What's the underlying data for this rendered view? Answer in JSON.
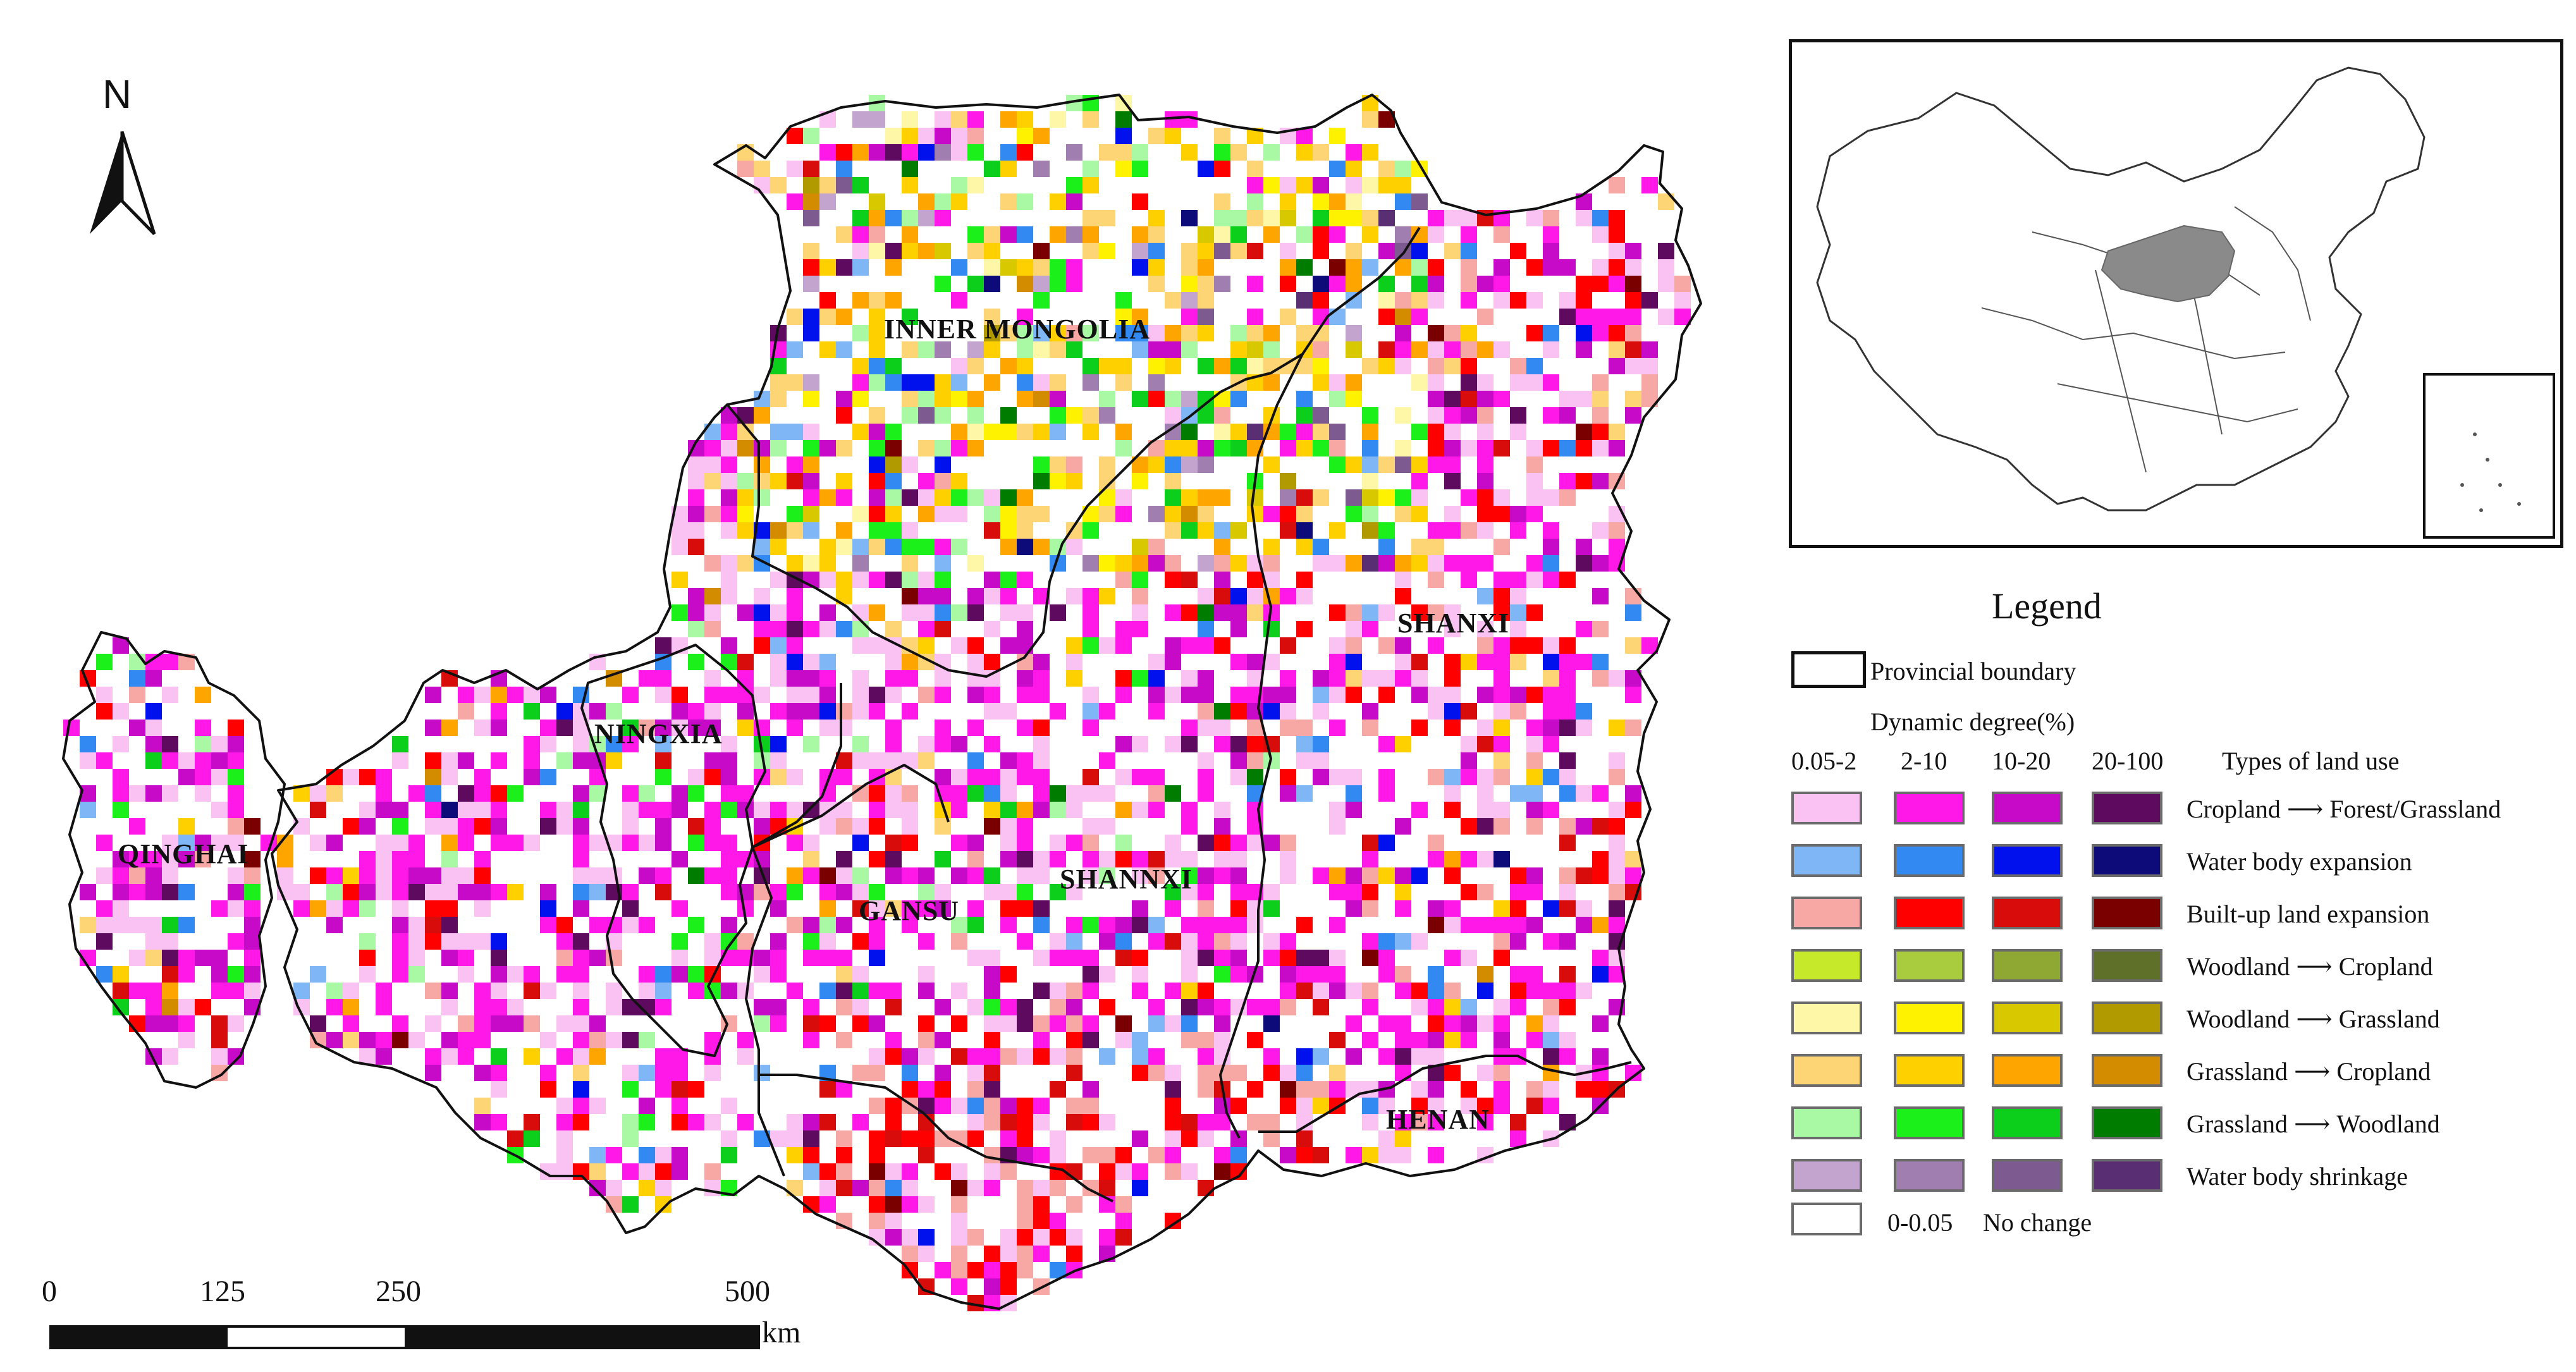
{
  "north": {
    "label": "N"
  },
  "provinces": [
    {
      "id": "inner-mongolia",
      "name": "INNER MONGOLIA"
    },
    {
      "id": "ningxia",
      "name": "NINGXIA"
    },
    {
      "id": "qinghai",
      "name": "QINGHAI"
    },
    {
      "id": "gansu",
      "name": "GANSU"
    },
    {
      "id": "shannxi",
      "name": "SHANNXI"
    },
    {
      "id": "shanxi",
      "name": "SHANXI"
    },
    {
      "id": "henan",
      "name": "HENAN"
    }
  ],
  "scale_bar": {
    "ticks": [
      "0",
      "125",
      "250",
      "500"
    ],
    "unit": "km"
  },
  "legend": {
    "title": "Legend",
    "boundary_label": "Provincial boundary",
    "dynamic_degree_label": "Dynamic degree(%)",
    "degree_classes": [
      "0.05-2",
      "2-10",
      "10-20",
      "20-100"
    ],
    "types_label": "Types of land use",
    "rows": [
      {
        "name": "cropland-to-forest",
        "from": "Cropland",
        "to": "Forest/Grassland",
        "colors": [
          "#f9c2f3",
          "#ff18e8",
          "#c70ac8",
          "#5e0a5e"
        ]
      },
      {
        "name": "water-expansion",
        "label": "Water body expansion",
        "colors": [
          "#7fb6f6",
          "#3389f2",
          "#0011ee",
          "#0d0a7a"
        ]
      },
      {
        "name": "builtup-expansion",
        "label": "Built-up land expansion",
        "colors": [
          "#f8a8a4",
          "#ff0000",
          "#d90c0c",
          "#7a0000"
        ]
      },
      {
        "name": "woodland-to-cropland",
        "from": "Woodland",
        "to": "Cropland",
        "colors": [
          "#c6ea2a",
          "#a9cc3e",
          "#8fa834",
          "#5f7028"
        ]
      },
      {
        "name": "woodland-to-grassland",
        "from": "Woodland",
        "to": "Grassland",
        "colors": [
          "#fff7a8",
          "#fff200",
          "#d8c800",
          "#b09a00"
        ]
      },
      {
        "name": "grassland-to-cropland",
        "from": "Grassland",
        "to": "Cropland",
        "colors": [
          "#fdd575",
          "#ffd000",
          "#ffa500",
          "#d38b00"
        ]
      },
      {
        "name": "grassland-to-woodland",
        "from": "Grassland",
        "to": "Woodland",
        "colors": [
          "#a8f8a4",
          "#1bf01b",
          "#0bcf1b",
          "#007d00"
        ]
      },
      {
        "name": "water-shrinkage",
        "label": "Water body shrinkage",
        "colors": [
          "#c3a4cf",
          "#a07fb0",
          "#7d5a90",
          "#5a2e72"
        ]
      }
    ],
    "no_change": {
      "range": "0-0.05",
      "label": "No change"
    }
  },
  "colors": {
    "map_highlight_gray": "#8a8a8a",
    "boundary": "#111111"
  }
}
